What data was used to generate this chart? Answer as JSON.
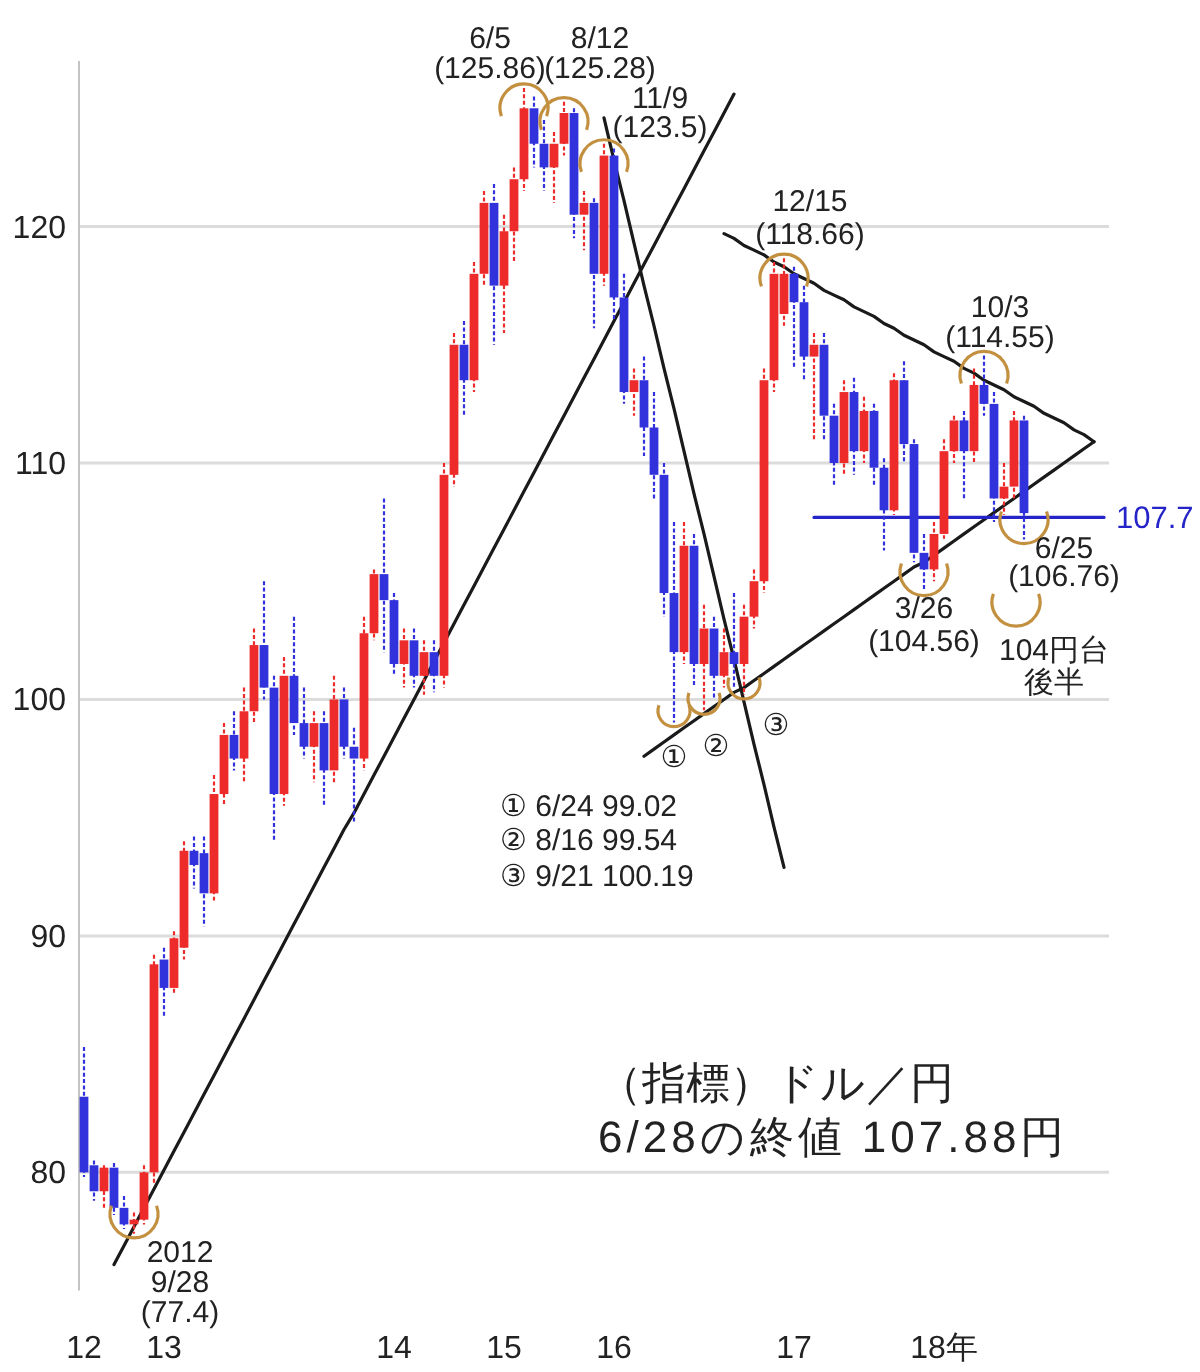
{
  "chart_data": {
    "type": "candlestick",
    "title": "（指標）ドル／円",
    "subtitle": "6/28の終値 107.88円",
    "categories": [
      "12",
      null,
      null,
      null,
      null,
      null,
      null,
      null,
      "13",
      null,
      null,
      null,
      null,
      null,
      null,
      null,
      null,
      null,
      null,
      null,
      null,
      null,
      null,
      null,
      null,
      null,
      null,
      null,
      null,
      null,
      null,
      "14",
      null,
      null,
      null,
      null,
      null,
      null,
      null,
      null,
      null,
      null,
      "15",
      null,
      null,
      null,
      null,
      null,
      null,
      null,
      null,
      null,
      null,
      "16",
      null,
      null,
      null,
      null,
      null,
      null,
      null,
      null,
      null,
      null,
      null,
      null,
      null,
      null,
      null,
      null,
      null,
      "17",
      null,
      null,
      null,
      null,
      null,
      null,
      null,
      null,
      null,
      null,
      null,
      null,
      null,
      null,
      "18年",
      null,
      null,
      null,
      null,
      null,
      null,
      null,
      null,
      null,
      null,
      null,
      null,
      null,
      null,
      null,
      null
    ],
    "ylim": [
      75,
      127
    ],
    "yticks": [
      80,
      90,
      100,
      110,
      120
    ],
    "grid": "y",
    "series": [
      {
        "ohlc": [
          [
            83.2,
            85.3,
            79.8,
            80.0
          ],
          [
            80.3,
            80.5,
            78.8,
            79.2
          ],
          [
            79.2,
            80.3,
            78.5,
            80.2
          ],
          [
            80.2,
            80.4,
            78.2,
            78.5
          ],
          [
            78.5,
            79.0,
            77.6,
            77.8
          ],
          [
            77.8,
            78.3,
            77.4,
            78.0
          ],
          [
            78.0,
            80.3,
            77.8,
            80.0
          ],
          [
            80.0,
            89.2,
            79.5,
            88.8
          ],
          [
            89.0,
            89.5,
            86.6,
            87.8
          ],
          [
            87.8,
            90.2,
            87.5,
            89.9
          ],
          [
            89.5,
            94.0,
            89.0,
            93.6
          ],
          [
            93.6,
            94.2,
            92.0,
            93.0
          ],
          [
            93.5,
            94.2,
            90.4,
            91.8
          ],
          [
            91.8,
            96.8,
            91.5,
            96.0
          ],
          [
            96.0,
            99.0,
            95.5,
            98.5
          ],
          [
            98.5,
            99.5,
            97.0,
            97.5
          ],
          [
            97.5,
            100.5,
            96.5,
            99.5
          ],
          [
            99.5,
            103.0,
            99.0,
            102.3
          ],
          [
            102.3,
            105.0,
            100.0,
            100.5
          ],
          [
            100.5,
            101.0,
            94.0,
            96.0
          ],
          [
            96.0,
            101.8,
            95.5,
            101.0
          ],
          [
            101.0,
            103.5,
            98.5,
            99.0
          ],
          [
            99.0,
            100.5,
            97.5,
            98.0
          ],
          [
            98.0,
            99.5,
            96.5,
            99.0
          ],
          [
            99.0,
            99.5,
            95.5,
            97.0
          ],
          [
            97.0,
            101.0,
            96.5,
            100.0
          ],
          [
            100.0,
            100.5,
            97.5,
            98.0
          ],
          [
            98.0,
            98.8,
            94.8,
            97.5
          ],
          [
            97.5,
            103.5,
            97.0,
            102.8
          ],
          [
            102.8,
            105.5,
            102.5,
            105.3
          ],
          [
            105.3,
            108.5,
            102.0,
            104.2
          ],
          [
            104.2,
            104.5,
            101.0,
            101.5
          ],
          [
            101.5,
            103.0,
            100.5,
            102.5
          ],
          [
            102.5,
            103.0,
            100.5,
            101.0
          ],
          [
            101.0,
            102.5,
            100.2,
            102.0
          ],
          [
            102.0,
            102.5,
            100.3,
            101.0
          ],
          [
            101.0,
            110.0,
            100.5,
            109.5
          ],
          [
            109.5,
            115.5,
            109.0,
            115.0
          ],
          [
            115.0,
            116.0,
            112.0,
            113.5
          ],
          [
            113.5,
            118.5,
            113.0,
            118.0
          ],
          [
            118.0,
            121.5,
            117.5,
            121.0
          ],
          [
            121.0,
            121.8,
            115.0,
            117.5
          ],
          [
            117.5,
            120.5,
            115.5,
            119.8
          ],
          [
            119.8,
            122.5,
            118.5,
            122.0
          ],
          [
            122.0,
            125.86,
            121.5,
            125.0
          ],
          [
            125.0,
            125.5,
            122.5,
            123.5
          ],
          [
            123.5,
            124.5,
            121.5,
            122.5
          ],
          [
            122.5,
            124.0,
            121.0,
            123.5
          ],
          [
            123.5,
            125.28,
            123.0,
            124.8
          ],
          [
            124.8,
            125.0,
            119.5,
            120.5
          ],
          [
            120.5,
            121.5,
            119.0,
            121.0
          ],
          [
            121.0,
            121.2,
            115.7,
            118.0
          ],
          [
            118.0,
            123.5,
            117.5,
            123.0
          ],
          [
            123.0,
            123.3,
            116.0,
            117.0
          ],
          [
            117.0,
            118.0,
            112.5,
            113.0
          ],
          [
            113.0,
            114.0,
            112.0,
            113.5
          ],
          [
            113.5,
            114.5,
            110.3,
            111.5
          ],
          [
            111.5,
            113.0,
            108.5,
            109.5
          ],
          [
            109.5,
            110.0,
            103.5,
            104.5
          ],
          [
            104.5,
            107.5,
            99.02,
            102.0
          ],
          [
            102.0,
            107.5,
            101.5,
            106.5
          ],
          [
            106.5,
            107.0,
            100.5,
            101.5
          ],
          [
            101.5,
            104.0,
            99.54,
            103.0
          ],
          [
            103.0,
            103.5,
            100.0,
            101.0
          ],
          [
            101.0,
            103.0,
            100.5,
            102.0
          ],
          [
            102.0,
            104.5,
            100.5,
            101.5
          ],
          [
            101.5,
            104.0,
            100.19,
            103.5
          ],
          [
            103.5,
            105.5,
            103.0,
            105.0
          ],
          [
            105.0,
            114.0,
            104.5,
            113.5
          ],
          [
            113.5,
            118.5,
            113.0,
            118.0
          ],
          [
            116.3,
            118.66,
            115.8,
            118.0
          ],
          [
            118.0,
            118.3,
            114.0,
            116.8
          ],
          [
            116.8,
            117.5,
            113.5,
            114.5
          ],
          [
            114.5,
            115.5,
            111.0,
            115.0
          ],
          [
            115.0,
            115.5,
            111.0,
            112.0
          ],
          [
            112.0,
            112.5,
            109.0,
            110.0
          ],
          [
            110.0,
            113.5,
            109.5,
            113.0
          ],
          [
            113.0,
            113.6,
            109.5,
            110.5
          ],
          [
            110.5,
            112.8,
            110.0,
            112.2
          ],
          [
            112.2,
            112.5,
            109.0,
            109.8
          ],
          [
            109.8,
            110.2,
            106.3,
            108.0
          ],
          [
            108.0,
            113.8,
            107.8,
            113.5
          ],
          [
            113.5,
            114.3,
            110.0,
            110.8
          ],
          [
            110.8,
            111.0,
            105.8,
            106.2
          ],
          [
            106.2,
            107.0,
            104.56,
            105.5
          ],
          [
            105.5,
            107.5,
            105.0,
            107.0
          ],
          [
            107.0,
            111.0,
            106.8,
            110.5
          ],
          [
            110.5,
            112.0,
            110.0,
            111.8
          ],
          [
            111.8,
            112.2,
            108.5,
            110.5
          ],
          [
            110.5,
            114.0,
            110.0,
            113.3
          ],
          [
            113.3,
            114.55,
            112.0,
            112.5
          ],
          [
            112.5,
            113.0,
            107.5,
            108.5
          ],
          [
            108.5,
            110.0,
            107.8,
            109.0
          ],
          [
            109.0,
            112.2,
            108.5,
            111.8
          ],
          [
            111.8,
            112.0,
            106.76,
            107.88
          ],
          null,
          null,
          null,
          null,
          null,
          null,
          null,
          null
        ],
        "colors": [
          "#3232dd",
          "#3232dd",
          "#ee2b2b",
          "#3232dd",
          "#3232dd",
          "#ee2b2b",
          "#ee2b2b",
          "#ee2b2b",
          "#3232dd",
          "#ee2b2b",
          "#ee2b2b",
          "#3232dd",
          "#3232dd",
          "#ee2b2b",
          "#ee2b2b",
          "#3232dd",
          "#ee2b2b",
          "#ee2b2b",
          "#3232dd",
          "#3232dd",
          "#ee2b2b",
          "#3232dd",
          "#3232dd",
          "#ee2b2b",
          "#3232dd",
          "#ee2b2b",
          "#3232dd",
          "#3232dd",
          "#ee2b2b",
          "#ee2b2b",
          "#3232dd",
          "#3232dd",
          "#ee2b2b",
          "#3232dd",
          "#ee2b2b",
          "#3232dd",
          "#ee2b2b",
          "#ee2b2b",
          "#3232dd",
          "#ee2b2b",
          "#ee2b2b",
          "#3232dd",
          "#ee2b2b",
          "#ee2b2b",
          "#ee2b2b",
          "#3232dd",
          "#3232dd",
          "#ee2b2b",
          "#ee2b2b",
          "#3232dd",
          "#ee2b2b",
          "#3232dd",
          "#ee2b2b",
          "#3232dd",
          "#3232dd",
          "#ee2b2b",
          "#3232dd",
          "#3232dd",
          "#3232dd",
          "#3232dd",
          "#ee2b2b",
          "#3232dd",
          "#ee2b2b",
          "#3232dd",
          "#ee2b2b",
          "#3232dd",
          "#ee2b2b",
          "#ee2b2b",
          "#ee2b2b",
          "#ee2b2b",
          "#ee2b2b",
          "#3232dd",
          "#3232dd",
          "#ee2b2b",
          "#3232dd",
          "#3232dd",
          "#ee2b2b",
          "#3232dd",
          "#ee2b2b",
          "#3232dd",
          "#3232dd",
          "#ee2b2b",
          "#3232dd",
          "#3232dd",
          "#3232dd",
          "#ee2b2b",
          "#ee2b2b",
          "#ee2b2b",
          "#3232dd",
          "#ee2b2b",
          "#3232dd",
          "#3232dd",
          "#ee2b2b",
          "#ee2b2b",
          "#3232dd",
          null,
          null,
          null,
          null,
          null,
          null,
          null,
          null
        ],
        "value_labels": [
          null,
          null,
          null,
          null,
          null,
          "2012\n9/28\n(77.4)",
          null,
          null,
          null,
          null,
          null,
          null,
          null,
          null,
          null,
          null,
          null,
          null,
          null,
          null,
          null,
          null,
          null,
          null,
          null,
          null,
          null,
          null,
          null,
          null,
          null,
          null,
          null,
          null,
          null,
          null,
          null,
          null,
          null,
          null,
          null,
          null,
          null,
          null,
          "6/5\n(125.86)",
          null,
          null,
          null,
          "8/12\n(125.28)",
          null,
          null,
          null,
          "11/9\n(123.5)",
          null,
          null,
          null,
          null,
          null,
          null,
          "①",
          null,
          null,
          "②",
          null,
          null,
          null,
          "③",
          null,
          null,
          null,
          "12/15\n(118.66)",
          null,
          null,
          null,
          null,
          null,
          null,
          null,
          null,
          null,
          null,
          null,
          null,
          null,
          "3/26\n(104.56)",
          null,
          null,
          null,
          null,
          null,
          "10/3\n(114.55)",
          null,
          null,
          null,
          "6/25\n(106.76)",
          null,
          null,
          null,
          null,
          null,
          null,
          null,
          null
        ]
      },
      {
        "type": "line",
        "color": "#1a1a1a",
        "values": [
          null,
          null,
          null,
          76.1,
          76.9,
          77.7,
          78.5,
          79.3,
          80.1,
          80.9,
          81.7,
          82.5,
          83.3,
          84.1,
          84.9,
          85.7,
          86.5,
          87.3,
          88.1,
          88.9,
          89.7,
          90.5,
          91.3,
          92.1,
          92.9,
          93.7,
          94.5,
          95.2,
          96.0,
          96.8,
          97.6,
          98.4,
          99.2,
          100.0,
          100.8,
          101.6,
          102.4,
          103.2,
          104.0,
          104.8,
          105.6,
          106.4,
          107.2,
          108.0,
          108.8,
          109.6,
          110.4,
          111.2,
          112.0,
          112.8,
          113.6,
          114.4,
          115.2,
          116.0,
          116.8,
          117.6,
          118.4,
          119.2,
          120.0,
          120.8,
          121.6,
          122.4,
          123.2,
          124.0,
          124.8,
          125.6,
          null,
          null,
          null,
          null,
          null,
          null,
          null,
          null,
          null,
          null,
          null,
          null,
          null,
          null,
          null,
          null,
          null,
          null,
          null,
          null,
          null,
          null,
          null,
          null,
          null,
          null,
          null,
          null,
          null,
          null,
          null,
          null,
          null,
          null,
          null,
          null,
          null
        ]
      },
      {
        "type": "line",
        "color": "#1a1a1a",
        "values": [
          null,
          null,
          null,
          null,
          null,
          null,
          null,
          null,
          null,
          null,
          null,
          null,
          null,
          null,
          null,
          null,
          null,
          null,
          null,
          null,
          null,
          null,
          null,
          null,
          null,
          null,
          null,
          null,
          null,
          null,
          null,
          null,
          null,
          null,
          null,
          null,
          null,
          null,
          null,
          null,
          null,
          null,
          null,
          null,
          null,
          null,
          null,
          null,
          null,
          null,
          null,
          null,
          124.6,
          122.8,
          121.1,
          119.3,
          117.5,
          115.8,
          114.0,
          112.3,
          110.5,
          108.7,
          107.0,
          105.2,
          103.4,
          101.7,
          99.9,
          98.1,
          96.4,
          94.6,
          92.9,
          null,
          null,
          null,
          null,
          null,
          null,
          null,
          null,
          null,
          null,
          null,
          null,
          null,
          null,
          null,
          null,
          null,
          null,
          null,
          null,
          null,
          null,
          null,
          null,
          null,
          null,
          null,
          null,
          null,
          null,
          null,
          null
        ]
      },
      {
        "type": "line",
        "color": "#1a1a1a",
        "values": [
          null,
          null,
          null,
          null,
          null,
          null,
          null,
          null,
          null,
          null,
          null,
          null,
          null,
          null,
          null,
          null,
          null,
          null,
          null,
          null,
          null,
          null,
          null,
          null,
          null,
          null,
          null,
          null,
          null,
          null,
          null,
          null,
          null,
          null,
          null,
          null,
          null,
          null,
          null,
          null,
          null,
          null,
          null,
          null,
          null,
          null,
          null,
          null,
          null,
          null,
          null,
          null,
          null,
          null,
          null,
          null,
          null,
          null,
          null,
          null,
          null,
          null,
          null,
          null,
          119.7,
          119.5,
          119.2,
          119.0,
          118.8,
          118.5,
          118.3,
          118.0,
          117.8,
          117.6,
          117.3,
          117.1,
          116.9,
          116.6,
          116.4,
          116.2,
          115.9,
          115.7,
          115.4,
          115.2,
          115.0,
          114.7,
          114.5,
          114.3,
          114.0,
          113.8,
          113.5,
          113.3,
          113.1,
          112.8,
          112.6,
          112.4,
          112.1,
          111.9,
          111.7,
          111.4,
          111.2,
          110.9,
          null
        ]
      },
      {
        "type": "line",
        "color": "#1a1a1a",
        "values": [
          null,
          null,
          null,
          null,
          null,
          null,
          null,
          null,
          null,
          null,
          null,
          null,
          null,
          null,
          null,
          null,
          null,
          null,
          null,
          null,
          null,
          null,
          null,
          null,
          null,
          null,
          null,
          null,
          null,
          null,
          null,
          null,
          null,
          null,
          null,
          null,
          null,
          null,
          null,
          null,
          null,
          null,
          null,
          null,
          null,
          null,
          null,
          null,
          null,
          null,
          null,
          null,
          null,
          null,
          null,
          null,
          97.6,
          97.9,
          98.2,
          98.5,
          98.8,
          99.1,
          99.4,
          99.7,
          100.0,
          100.3,
          100.5,
          100.8,
          101.1,
          101.4,
          101.7,
          102.0,
          102.3,
          102.6,
          102.9,
          103.2,
          103.5,
          103.8,
          104.1,
          104.4,
          104.7,
          105.0,
          105.3,
          105.6,
          105.8,
          106.1,
          106.4,
          106.7,
          107.0,
          107.3,
          107.6,
          107.9,
          108.2,
          108.5,
          108.8,
          109.1,
          109.4,
          109.7,
          110.0,
          110.3,
          110.6,
          110.9,
          null
        ]
      },
      {
        "type": "line",
        "color": "#2424c8",
        "values": [
          null,
          null,
          null,
          null,
          null,
          null,
          null,
          null,
          null,
          null,
          null,
          null,
          null,
          null,
          null,
          null,
          null,
          null,
          null,
          null,
          null,
          null,
          null,
          null,
          null,
          null,
          null,
          null,
          null,
          null,
          null,
          null,
          null,
          null,
          null,
          null,
          null,
          null,
          null,
          null,
          null,
          null,
          null,
          null,
          null,
          null,
          null,
          null,
          null,
          null,
          null,
          null,
          null,
          null,
          null,
          null,
          null,
          null,
          null,
          null,
          null,
          null,
          null,
          null,
          null,
          null,
          null,
          null,
          null,
          null,
          null,
          null,
          null,
          107.7,
          107.7,
          107.7,
          107.7,
          107.7,
          107.7,
          107.7,
          107.7,
          107.7,
          107.7,
          107.7,
          107.7,
          107.7,
          107.7,
          107.7,
          107.7,
          107.7,
          107.7,
          107.7,
          107.7,
          107.7,
          107.7,
          107.7,
          107.7,
          107.7,
          107.7,
          107.7,
          107.7,
          107.7,
          107.7
        ],
        "value_labels": [
          null,
          null,
          null,
          null,
          null,
          null,
          null,
          null,
          null,
          null,
          null,
          null,
          null,
          null,
          null,
          null,
          null,
          null,
          null,
          null,
          null,
          null,
          null,
          null,
          null,
          null,
          null,
          null,
          null,
          null,
          null,
          null,
          null,
          null,
          null,
          null,
          null,
          null,
          null,
          null,
          null,
          null,
          null,
          null,
          null,
          null,
          null,
          null,
          null,
          null,
          null,
          null,
          null,
          null,
          null,
          null,
          null,
          null,
          null,
          null,
          null,
          null,
          null,
          null,
          null,
          null,
          null,
          null,
          null,
          null,
          null,
          null,
          null,
          null,
          null,
          null,
          null,
          null,
          null,
          null,
          null,
          null,
          null,
          null,
          null,
          null,
          null,
          null,
          null,
          null,
          null,
          null,
          null,
          null,
          null,
          null,
          null,
          null,
          null,
          null,
          null,
          null,
          "107.7"
        ]
      }
    ],
    "annotations": [
      "① 6/24 99.02",
      "② 8/16 99.54",
      "③ 9/21 100.19",
      "104円台後半"
    ]
  }
}
